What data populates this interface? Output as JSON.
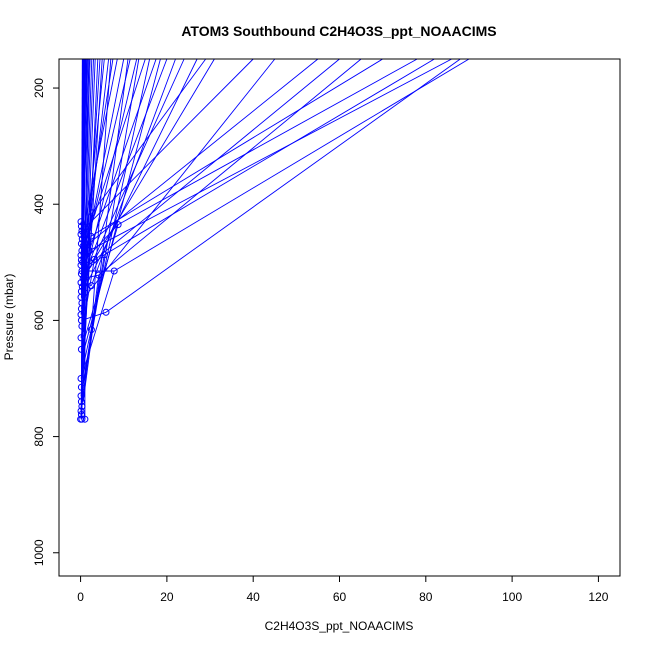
{
  "chart_data": {
    "type": "line",
    "title": "ATOM3 Southbound C2H4O3S_ppt_NOAACIMS",
    "xlabel": "C2H4O3S_ppt_NOAACIMS",
    "ylabel": "Pressure (mbar)",
    "xlim": [
      -5,
      125
    ],
    "ylim": [
      1040,
      150
    ],
    "y_reversed": true,
    "xticks": [
      0,
      20,
      40,
      60,
      80,
      100,
      120
    ],
    "yticks": [
      200,
      400,
      600,
      800,
      1000
    ],
    "grid": false,
    "legend": "none",
    "series_color": "#0000ff",
    "points": [
      [
        0.1,
        430
      ],
      [
        0.2,
        438
      ],
      [
        0.3,
        446
      ],
      [
        0.1,
        452
      ],
      [
        0.4,
        460
      ],
      [
        0.2,
        468
      ],
      [
        0.6,
        472
      ],
      [
        0.3,
        480
      ],
      [
        0.1,
        488
      ],
      [
        0.8,
        492
      ],
      [
        0.2,
        496
      ],
      [
        0.5,
        500
      ],
      [
        0.1,
        505
      ],
      [
        1.0,
        510
      ],
      [
        0.3,
        515
      ],
      [
        0.2,
        520
      ],
      [
        0.6,
        528
      ],
      [
        0.1,
        535
      ],
      [
        0.4,
        542
      ],
      [
        0.2,
        550
      ],
      [
        0.1,
        560
      ],
      [
        0.3,
        570
      ],
      [
        0.2,
        580
      ],
      [
        0.1,
        590
      ],
      [
        0.2,
        600
      ],
      [
        0.3,
        610
      ],
      [
        0.1,
        630
      ],
      [
        0.2,
        650
      ],
      [
        0.1,
        700
      ],
      [
        0.2,
        715
      ],
      [
        0.1,
        730
      ],
      [
        0.2,
        740
      ],
      [
        0.3,
        748
      ],
      [
        0.1,
        756
      ],
      [
        0.2,
        762
      ],
      [
        0.0,
        770
      ],
      [
        0.3,
        770
      ],
      [
        1.0,
        770
      ],
      [
        2.7,
        415
      ],
      [
        8.7,
        435
      ],
      [
        2.4,
        455
      ],
      [
        2.0,
        480
      ],
      [
        5.5,
        487
      ],
      [
        3.2,
        495
      ],
      [
        4.2,
        522
      ],
      [
        7.8,
        515
      ],
      [
        2.5,
        540
      ],
      [
        1.0,
        544
      ],
      [
        5.9,
        586
      ],
      [
        2.5,
        616
      ],
      [
        1.5,
        470
      ],
      [
        1.8,
        505
      ],
      [
        1.2,
        525
      ],
      [
        0.9,
        560
      ],
      [
        1.4,
        460
      ],
      [
        1.1,
        440
      ]
    ],
    "segments": [
      [
        0.3,
        600,
        0.5,
        150
      ],
      [
        0.4,
        580,
        0.6,
        150
      ],
      [
        0.2,
        560,
        0.4,
        150
      ],
      [
        0.3,
        540,
        0.8,
        150
      ],
      [
        0.5,
        520,
        1.0,
        150
      ],
      [
        0.4,
        500,
        1.2,
        150
      ],
      [
        0.3,
        480,
        1.4,
        150
      ],
      [
        0.5,
        460,
        1.7,
        150
      ],
      [
        0.6,
        440,
        2.0,
        150
      ],
      [
        0.2,
        700,
        0.7,
        150
      ],
      [
        0.2,
        750,
        0.9,
        150
      ],
      [
        0.1,
        770,
        1.1,
        150
      ],
      [
        0.3,
        650,
        1.5,
        150
      ],
      [
        0.6,
        620,
        1.9,
        150
      ],
      [
        0.4,
        610,
        2.2,
        150
      ],
      [
        0.3,
        640,
        2.6,
        150
      ],
      [
        0.7,
        590,
        3.0,
        150
      ],
      [
        0.2,
        730,
        3.4,
        150
      ],
      [
        0.4,
        740,
        4.0,
        150
      ],
      [
        0.9,
        570,
        4.5,
        150
      ],
      [
        0.5,
        520,
        5.5,
        150
      ],
      [
        1.1,
        500,
        6.5,
        150
      ],
      [
        0.8,
        470,
        7.5,
        150
      ],
      [
        0.5,
        450,
        8.5,
        150
      ],
      [
        1.2,
        480,
        10.0,
        150
      ],
      [
        1.5,
        470,
        11.5,
        150
      ],
      [
        0.9,
        530,
        13.0,
        150
      ],
      [
        1.4,
        460,
        15.0,
        150
      ],
      [
        2.0,
        480,
        17.5,
        150
      ],
      [
        1.8,
        505,
        20.0,
        150
      ],
      [
        2.5,
        540,
        22.0,
        150
      ],
      [
        1.2,
        525,
        24.0,
        150
      ],
      [
        1.0,
        544,
        27.0,
        150
      ],
      [
        2.7,
        415,
        29.0,
        150
      ],
      [
        3.2,
        495,
        31.0,
        150
      ],
      [
        0.6,
        740,
        11.0,
        150
      ],
      [
        0.4,
        720,
        13.5,
        150
      ],
      [
        0.3,
        690,
        16.0,
        150
      ],
      [
        0.5,
        660,
        18.5,
        150
      ],
      [
        2.5,
        616,
        7.0,
        150
      ],
      [
        0.4,
        700,
        5.0,
        150
      ],
      [
        1.5,
        470,
        55.0,
        150
      ],
      [
        1.8,
        505,
        60.0,
        150
      ],
      [
        4.2,
        522,
        65.0,
        150
      ],
      [
        2.4,
        455,
        70.0,
        150
      ],
      [
        8.7,
        435,
        78.0,
        150
      ],
      [
        5.5,
        487,
        82.0,
        150
      ],
      [
        2.0,
        480,
        86.0,
        150
      ],
      [
        5.9,
        586,
        88.0,
        150
      ],
      [
        7.8,
        515,
        90.0,
        150
      ],
      [
        1.1,
        440,
        40.0,
        150
      ],
      [
        0.9,
        560,
        45.0,
        150
      ],
      [
        1.0,
        770,
        1.0,
        544
      ],
      [
        0.3,
        770,
        0.8,
        430
      ],
      [
        0.2,
        762,
        0.6,
        420
      ],
      [
        0.1,
        756,
        2.5,
        616
      ],
      [
        0.3,
        748,
        4.2,
        522
      ],
      [
        0.2,
        740,
        1.5,
        470
      ],
      [
        0.1,
        730,
        5.5,
        487
      ],
      [
        0.2,
        715,
        2.0,
        480
      ],
      [
        0.1,
        700,
        7.8,
        515
      ],
      [
        0.2,
        650,
        8.7,
        435
      ],
      [
        0.1,
        630,
        3.2,
        495
      ],
      [
        0.3,
        610,
        2.4,
        455
      ],
      [
        0.2,
        600,
        5.9,
        586
      ],
      [
        0.1,
        590,
        1.8,
        505
      ],
      [
        0.2,
        580,
        2.7,
        415
      ],
      [
        0.3,
        570,
        1.2,
        525
      ],
      [
        0.1,
        560,
        0.9,
        560
      ],
      [
        0.2,
        550,
        1.4,
        460
      ],
      [
        0.4,
        542,
        1.1,
        440
      ],
      [
        0.1,
        535,
        2.5,
        540
      ],
      [
        0.6,
        528,
        4.2,
        522
      ],
      [
        0.2,
        520,
        5.5,
        487
      ],
      [
        0.3,
        515,
        7.8,
        515
      ],
      [
        1.0,
        510,
        2.0,
        480
      ],
      [
        0.1,
        505,
        3.2,
        495
      ],
      [
        0.5,
        500,
        8.7,
        435
      ],
      [
        0.2,
        496,
        2.7,
        415
      ],
      [
        0.8,
        492,
        1.5,
        470
      ],
      [
        0.1,
        488,
        0.4,
        460
      ],
      [
        0.3,
        480,
        0.2,
        468
      ],
      [
        0.6,
        472,
        0.1,
        452
      ],
      [
        0.4,
        460,
        0.3,
        446
      ],
      [
        0.1,
        452,
        0.2,
        438
      ],
      [
        0.3,
        446,
        0.1,
        430
      ]
    ]
  }
}
